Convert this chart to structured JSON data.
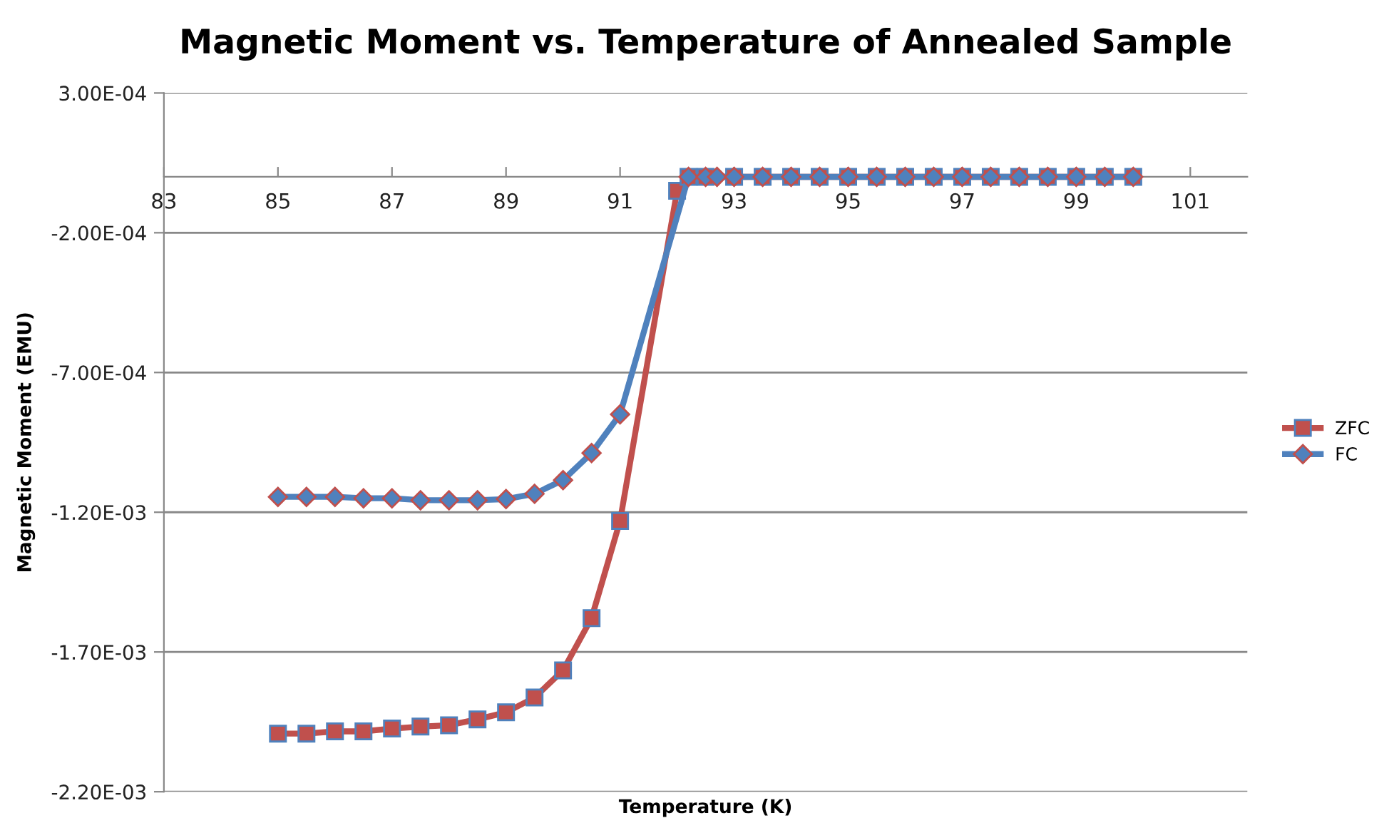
{
  "chart_data": {
    "type": "line",
    "title": "Magnetic Moment vs. Temperature of Annealed Sample",
    "xlabel": "Temperature (K)",
    "ylabel": "Magnetic Moment (EMU)",
    "xlim": [
      83,
      102
    ],
    "xticks": [
      83,
      85,
      87,
      89,
      91,
      93,
      95,
      97,
      99,
      101
    ],
    "ylim": [
      -0.0022,
      0.0003
    ],
    "yticks": [
      {
        "value": 0.0003,
        "label": "3.00E-04"
      },
      {
        "value": -0.0002,
        "label": "-2.00E-04"
      },
      {
        "value": -0.0007,
        "label": "-7.00E-04"
      },
      {
        "value": -0.0012,
        "label": "-1.20E-03"
      },
      {
        "value": -0.0017,
        "label": "-1.70E-03"
      },
      {
        "value": -0.0022,
        "label": "-2.20E-03"
      }
    ],
    "grid": "y",
    "legend": "right",
    "line_style": "solid",
    "series": [
      {
        "name": "ZFC",
        "color": "#c0504d",
        "marker": "square",
        "x": [
          85,
          85.5,
          86,
          86.5,
          87,
          87.5,
          88,
          88.5,
          89,
          89.5,
          90,
          90.5,
          91,
          92,
          92.2,
          92.5,
          93,
          93.5,
          94,
          94.5,
          95,
          95.5,
          96,
          96.5,
          97,
          97.5,
          98,
          98.5,
          99,
          99.5,
          100
        ],
        "values": [
          -0.001992,
          -0.001992,
          -0.001984,
          -0.001984,
          -0.001974,
          -0.001967,
          -0.001962,
          -0.001941,
          -0.001916,
          -0.001863,
          -0.001766,
          -0.001579,
          -0.001231,
          -5e-05,
          0,
          0,
          0,
          0,
          0,
          0,
          0,
          0,
          0,
          0,
          0,
          0,
          0,
          0,
          0,
          0,
          0
        ]
      },
      {
        "name": "FC",
        "color": "#4f81bd",
        "marker": "diamond",
        "x": [
          85,
          85.5,
          86,
          86.5,
          87,
          87.5,
          88,
          88.5,
          89,
          89.5,
          90,
          90.5,
          91,
          92.2,
          92.5,
          92.7,
          93,
          93.5,
          94,
          94.5,
          95,
          95.5,
          96,
          96.5,
          97,
          97.5,
          98,
          98.5,
          99,
          99.5,
          100
        ],
        "values": [
          -0.001145,
          -0.001145,
          -0.001145,
          -0.00115,
          -0.00115,
          -0.001157,
          -0.001157,
          -0.001157,
          -0.001153,
          -0.001134,
          -0.001085,
          -0.000988,
          -0.00085,
          0,
          0,
          0,
          0,
          0,
          0,
          0,
          0,
          0,
          0,
          0,
          0,
          0,
          0,
          0,
          0,
          0,
          0
        ]
      }
    ]
  }
}
